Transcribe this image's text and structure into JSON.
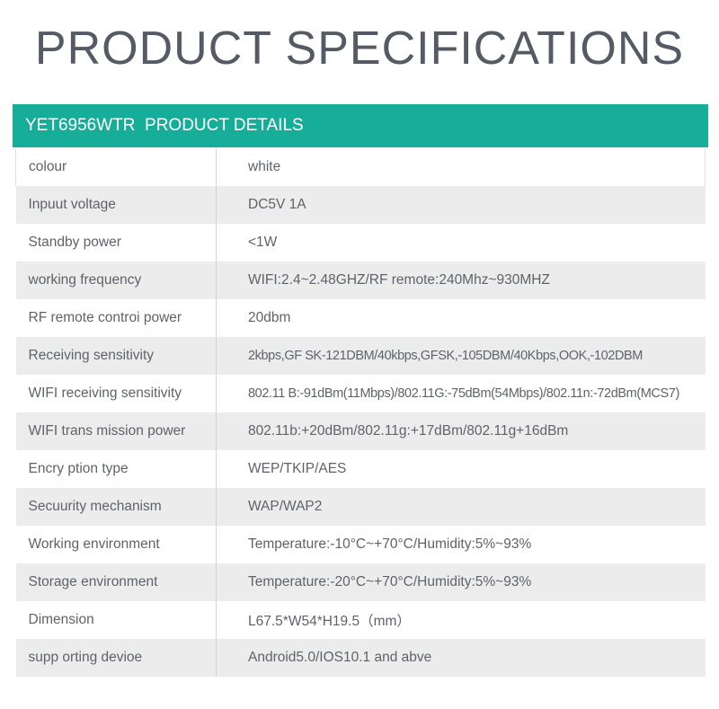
{
  "page": {
    "title": "PRODUCT SPECIFICATIONS"
  },
  "header": {
    "title": "YET6956WTR  PRODUCT DETAILS"
  },
  "colors": {
    "accent": "#17ae99",
    "title_text": "#545b64",
    "stripe": "#ececec"
  },
  "specs": [
    {
      "label": "colour",
      "value": "white"
    },
    {
      "label": "Inpuut voltage",
      "value": "DC5V  1A"
    },
    {
      "label": "Standby power",
      "value": "<1W"
    },
    {
      "label": "working  frequency",
      "value": "WIFI:2.4~2.48GHZ/RF remote:240Mhz~930MHZ"
    },
    {
      "label": "RF remote controi power",
      "value": "20dbm"
    },
    {
      "label": "Receiving sensitivity",
      "value": "2kbps,GF SK-121DBM/40kbps,GFSK,-105DBM/40Kbps,OOK,-102DBM"
    },
    {
      "label": "WIFI receiving sensitivity",
      "value": "802.11 B:-91dBm(11Mbps)/802.11G:-75dBm(54Mbps)/802.11n:-72dBm(MCS7)"
    },
    {
      "label": "WIFI trans mission power",
      "value": "802.11b:+20dBm/802.11g:+17dBm/802.11g+16dBm"
    },
    {
      "label": "Encry ption type",
      "value": "WEP/TKIP/AES"
    },
    {
      "label": "Secuurity mechanism",
      "value": "WAP/WAP2"
    },
    {
      "label": "Working environment",
      "value": "Temperature:-10°C~+70°C/Humidity:5%~93%"
    },
    {
      "label": "Storage environment",
      "value": "Temperature:-20°C~+70°C/Humidity:5%~93%"
    },
    {
      "label": "Dimension",
      "value": "L67.5*W54*H19.5（mm）"
    },
    {
      "label": "supp orting devioe",
      "value": "Android5.0/IOS10.1 and  abve"
    }
  ]
}
